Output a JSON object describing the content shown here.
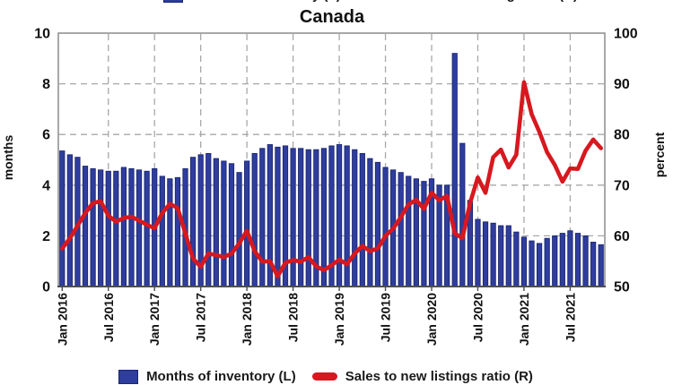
{
  "title": "Canada",
  "legend": {
    "inventory_label": "Months of inventory (L)",
    "snlr_label": "Sales to new listings ratio (R)"
  },
  "colors": {
    "bar_fill": "#2e3d9e",
    "bar_stroke": "#1a2670",
    "line_red": "#d7181f",
    "grid": "#a8a8a8",
    "border": "#8c8c8c",
    "axis": "#4d4d4d"
  },
  "chart_data": {
    "type": "bar",
    "title": "Canada",
    "y_left": {
      "label": "months",
      "min": 0,
      "max": 10,
      "ticks": [
        0,
        2,
        4,
        6,
        8,
        10
      ]
    },
    "y_right": {
      "label": "percent",
      "min": 50,
      "max": 100,
      "ticks": [
        50,
        60,
        70,
        80,
        90,
        100
      ]
    },
    "x_ticks": [
      "Jan 2016",
      "Jul 2016",
      "Jan 2017",
      "Jul 2017",
      "Jan 2018",
      "Jul 2018",
      "Jan 2019",
      "Jul 2019",
      "Jan 2020",
      "Jul 2020",
      "Jan 2021",
      "Jul 2021"
    ],
    "grid": true,
    "legend_position": "bottom",
    "months": [
      "Jan 2016",
      "Feb 2016",
      "Mar 2016",
      "Apr 2016",
      "May 2016",
      "Jun 2016",
      "Jul 2016",
      "Aug 2016",
      "Sep 2016",
      "Oct 2016",
      "Nov 2016",
      "Dec 2016",
      "Jan 2017",
      "Feb 2017",
      "Mar 2017",
      "Apr 2017",
      "May 2017",
      "Jun 2017",
      "Jul 2017",
      "Aug 2017",
      "Sep 2017",
      "Oct 2017",
      "Nov 2017",
      "Dec 2017",
      "Jan 2018",
      "Feb 2018",
      "Mar 2018",
      "Apr 2018",
      "May 2018",
      "Jun 2018",
      "Jul 2018",
      "Aug 2018",
      "Sep 2018",
      "Oct 2018",
      "Nov 2018",
      "Dec 2018",
      "Jan 2019",
      "Feb 2019",
      "Mar 2019",
      "Apr 2019",
      "May 2019",
      "Jun 2019",
      "Jul 2019",
      "Aug 2019",
      "Sep 2019",
      "Oct 2019",
      "Nov 2019",
      "Dec 2019",
      "Jan 2020",
      "Feb 2020",
      "Mar 2020",
      "Apr 2020",
      "May 2020",
      "Jun 2020",
      "Jul 2020",
      "Aug 2020",
      "Sep 2020",
      "Oct 2020",
      "Nov 2020",
      "Dec 2020",
      "Jan 2021",
      "Feb 2021",
      "Mar 2021",
      "Apr 2021",
      "May 2021",
      "Jun 2021",
      "Jul 2021",
      "Aug 2021",
      "Sep 2021",
      "Oct 2021",
      "Nov 2021"
    ],
    "series": [
      {
        "name": "Months of inventory (L)",
        "type": "bar",
        "axis": "left",
        "color": "#2e3d9e",
        "values": [
          5.35,
          5.2,
          5.1,
          4.75,
          4.65,
          4.6,
          4.55,
          4.55,
          4.7,
          4.65,
          4.6,
          4.55,
          4.65,
          4.35,
          4.25,
          4.3,
          4.65,
          5.1,
          5.2,
          5.25,
          5.05,
          4.95,
          4.85,
          4.5,
          4.95,
          5.25,
          5.45,
          5.6,
          5.5,
          5.55,
          5.45,
          5.45,
          5.4,
          5.4,
          5.45,
          5.55,
          5.6,
          5.55,
          5.4,
          5.25,
          5.05,
          4.9,
          4.7,
          4.6,
          4.5,
          4.35,
          4.25,
          4.15,
          4.25,
          4.0,
          4.0,
          9.2,
          5.65,
          3.4,
          2.65,
          2.55,
          2.5,
          2.4,
          2.4,
          2.15,
          1.95,
          1.8,
          1.7,
          1.9,
          2.0,
          2.1,
          2.2,
          2.1,
          2.0,
          1.75,
          1.65
        ]
      },
      {
        "name": "Sales to new listings ratio (R)",
        "type": "line",
        "axis": "right",
        "color": "#d7181f",
        "values": [
          57.5,
          59.5,
          62.0,
          64.5,
          66.5,
          66.8,
          64.0,
          62.8,
          63.5,
          63.8,
          63.0,
          62.2,
          61.5,
          64.5,
          66.3,
          65.5,
          60.5,
          55.5,
          53.9,
          56.5,
          56.2,
          55.8,
          56.5,
          58.5,
          61.0,
          57.0,
          54.9,
          55.0,
          52.0,
          54.7,
          55.2,
          54.9,
          55.8,
          54.0,
          53.2,
          54.2,
          55.3,
          54.4,
          56.5,
          58.0,
          57.0,
          57.5,
          60.0,
          61.4,
          63.7,
          66.2,
          67.1,
          65.3,
          68.5,
          67.0,
          67.9,
          60.5,
          59.5,
          66.5,
          71.5,
          68.5,
          75.5,
          77.0,
          73.5,
          76.0,
          90.3,
          84.0,
          80.5,
          76.5,
          74.0,
          70.7,
          73.3,
          73.2,
          76.8,
          79.0,
          77.3
        ]
      }
    ]
  }
}
